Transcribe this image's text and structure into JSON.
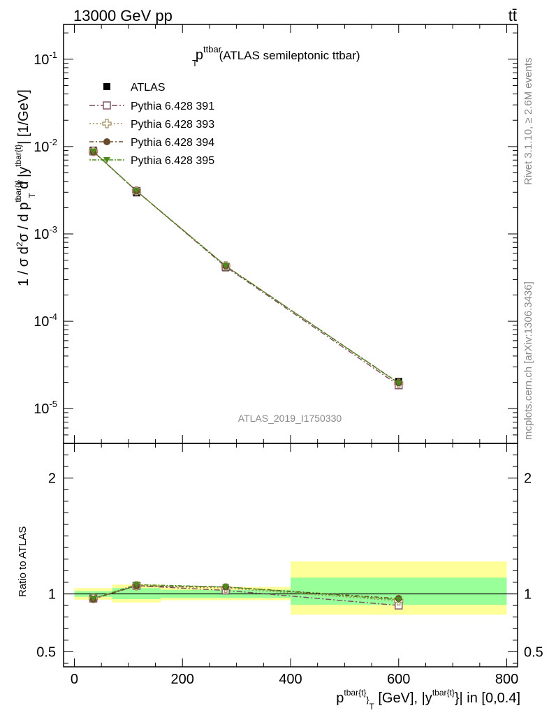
{
  "header": {
    "left": "13000 GeV pp",
    "right": "tt̄"
  },
  "side_text": {
    "rivet": "Rivet 3.1.10, ≥ 2.6M events",
    "mcplots": "mcplots.cern.ch [arXiv:1306.3436]"
  },
  "plot": {
    "title_main": "p",
    "title_sup": "ttbar",
    "title_sub": "T",
    "title_rest": " (ATLAS semileptonic ttbar)",
    "analysis_tag": "ATLAS_2019_I1750330"
  },
  "legend": {
    "entries": [
      "ATLAS",
      "Pythia 6.428 391",
      "Pythia 6.428 393",
      "Pythia 6.428 394",
      "Pythia 6.428 395"
    ]
  },
  "chart_data": {
    "type": "scatter",
    "title": "p_T^ttbar (ATLAS semileptonic ttbar)",
    "xlabel": "p^{tbar{t}}_T [GeV], |y^{tbar{t}}| in [0,0.4]",
    "ylabel": "1 / σ d²σ / d p^{tbar{t}}_T d |y^{tbar{t}}| [1/GeV]",
    "ratio_ylabel": "Ratio to ATLAS",
    "xlim": [
      -20,
      820
    ],
    "ylim": [
      4e-06,
      0.25
    ],
    "ratio_ylim": [
      0.37,
      2.3
    ],
    "log_y": true,
    "x_ticks": [
      0,
      200,
      400,
      600,
      800
    ],
    "y_ticks": [
      "10^-5",
      "10^-4",
      "10^-3",
      "10^-2",
      "10^-1"
    ],
    "ratio_ticks": [
      0.5,
      1,
      2
    ],
    "bins": [
      [
        0,
        70
      ],
      [
        70,
        160
      ],
      [
        160,
        400
      ],
      [
        400,
        800
      ]
    ],
    "x": [
      35,
      115,
      280,
      600
    ],
    "data": {
      "name": "ATLAS",
      "values": [
        0.0091,
        0.00295,
        0.00041,
        2.05e-05
      ],
      "ratio_band_stat": [
        [
          0.975,
          1.025
        ],
        [
          0.955,
          1.05
        ],
        [
          0.965,
          1.035
        ],
        [
          0.905,
          1.14
        ]
      ],
      "ratio_band_total": [
        [
          0.95,
          1.05
        ],
        [
          0.925,
          1.08
        ],
        [
          0.945,
          1.06
        ],
        [
          0.82,
          1.28
        ]
      ]
    },
    "series": [
      {
        "name": "Pythia 6.428 391",
        "values": [
          0.0088,
          0.0031,
          0.00042,
          1.85e-05
        ],
        "ratio": [
          0.96,
          1.07,
          1.03,
          0.9
        ],
        "color": "#7b4b5e",
        "marker": "open-square",
        "dash": "8,3,2,3"
      },
      {
        "name": "Pythia 6.428 393",
        "values": [
          0.0088,
          0.0031,
          0.00043,
          1.95e-05
        ],
        "ratio": [
          0.96,
          1.07,
          1.05,
          0.94
        ],
        "color": "#a08a5a",
        "marker": "open-cross",
        "dash": "2,3"
      },
      {
        "name": "Pythia 6.428 394",
        "values": [
          0.0087,
          0.0031,
          0.00043,
          1.97e-05
        ],
        "ratio": [
          0.955,
          1.07,
          1.06,
          0.96
        ],
        "color": "#6b4a2c",
        "marker": "filled-circle",
        "dash": "6,3,2,3"
      },
      {
        "name": "Pythia 6.428 395",
        "values": [
          0.0088,
          0.0031,
          0.00043,
          1.96e-05
        ],
        "ratio": [
          0.96,
          1.08,
          1.06,
          0.95
        ],
        "color": "#4e8a1e",
        "marker": "filled-triangle-down",
        "dash": "2,2,6,2"
      }
    ],
    "colors": {
      "stat_band": "#99ff99",
      "total_band": "#ffff99",
      "data": "#000000"
    }
  }
}
